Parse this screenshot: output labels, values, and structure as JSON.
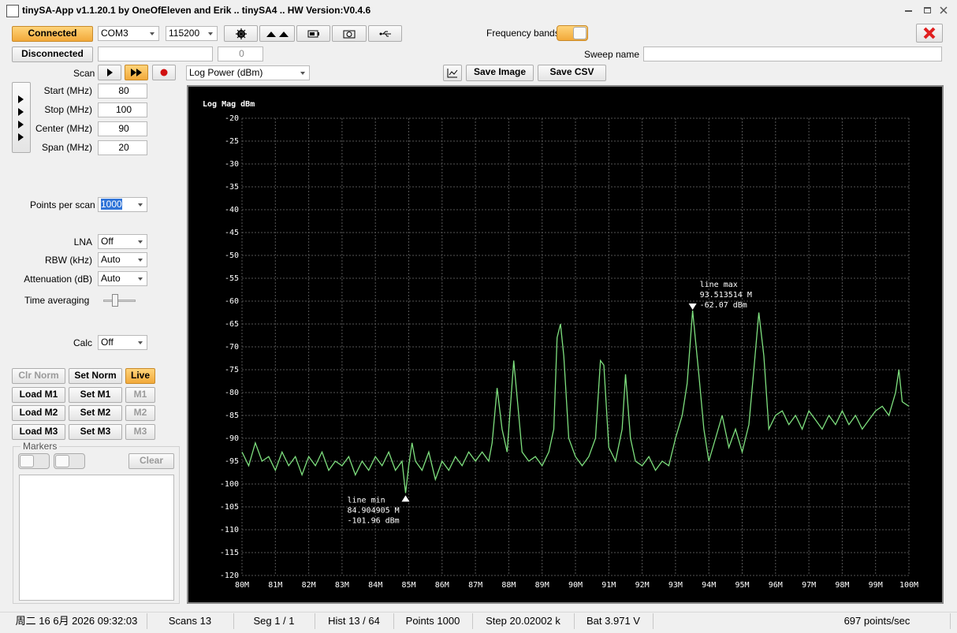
{
  "window": {
    "title": "tinySA-App v1.1.20.1 by OneOfEleven and Erik .. tinySA4 .. HW Version:V0.4.6"
  },
  "toolbar": {
    "connected": "Connected",
    "port": "COM3",
    "baud": "115200",
    "frequency_bands": "Frequency bands",
    "disconnected": "Disconnected",
    "count": "0",
    "sweep_name": "Sweep name"
  },
  "controls": {
    "scan": "Scan",
    "mode": "Log Power (dBm)",
    "save_image": "Save Image",
    "save_csv": "Save CSV"
  },
  "left_panel": {
    "fields": [
      {
        "label": "Start (MHz)",
        "value": "80"
      },
      {
        "label": "Stop (MHz)",
        "value": "100"
      },
      {
        "label": "Center (MHz)",
        "value": "90"
      },
      {
        "label": "Span (MHz)",
        "value": "20"
      }
    ],
    "points_label": "Points per scan",
    "points": "1000",
    "settings": [
      {
        "label": "LNA",
        "value": "Off"
      },
      {
        "label": "RBW (kHz)",
        "value": "Auto"
      },
      {
        "label": "Attenuation (dB)",
        "value": "Auto"
      }
    ],
    "time_averaging": "Time averaging",
    "calc_label": "Calc",
    "calc": "Off",
    "buttons": [
      [
        "Clr Norm",
        "Set Norm",
        "Live"
      ],
      [
        "Load M1",
        "Set M1",
        "M1"
      ],
      [
        "Load M2",
        "Set M2",
        "M2"
      ],
      [
        "Load M3",
        "Set M3",
        "M3"
      ]
    ],
    "markers": "Markers",
    "clear": "Clear"
  },
  "chart_data": {
    "type": "line",
    "y_label": "Log Mag dBm",
    "color": "#7ee07e",
    "grid": true,
    "xlim": [
      80,
      100
    ],
    "ylim": [
      -120,
      -20
    ],
    "xticks": [
      {
        "value": 80,
        "label": "80M"
      },
      {
        "value": 81,
        "label": "81M"
      },
      {
        "value": 82,
        "label": "82M"
      },
      {
        "value": 83,
        "label": "83M"
      },
      {
        "value": 84,
        "label": "84M"
      },
      {
        "value": 85,
        "label": "85M"
      },
      {
        "value": 86,
        "label": "86M"
      },
      {
        "value": 87,
        "label": "87M"
      },
      {
        "value": 88,
        "label": "88M"
      },
      {
        "value": 89,
        "label": "89M"
      },
      {
        "value": 90,
        "label": "90M"
      },
      {
        "value": 91,
        "label": "91M"
      },
      {
        "value": 92,
        "label": "92M"
      },
      {
        "value": 93,
        "label": "93M"
      },
      {
        "value": 94,
        "label": "94M"
      },
      {
        "value": 95,
        "label": "95M"
      },
      {
        "value": 96,
        "label": "96M"
      },
      {
        "value": 97,
        "label": "97M"
      },
      {
        "value": 98,
        "label": "98M"
      },
      {
        "value": 99,
        "label": "99M"
      },
      {
        "value": 100,
        "label": "100M"
      }
    ],
    "yticks": [
      -20,
      -25,
      -30,
      -35,
      -40,
      -45,
      -50,
      -55,
      -60,
      -65,
      -70,
      -75,
      -80,
      -85,
      -90,
      -95,
      -100,
      -105,
      -110,
      -115,
      -120
    ],
    "x": [
      80.0,
      80.2,
      80.4,
      80.6,
      80.8,
      81.0,
      81.2,
      81.4,
      81.6,
      81.8,
      82.0,
      82.2,
      82.4,
      82.6,
      82.8,
      83.0,
      83.2,
      83.4,
      83.6,
      83.8,
      84.0,
      84.2,
      84.4,
      84.6,
      84.8,
      84.904905,
      85.0,
      85.1,
      85.2,
      85.4,
      85.6,
      85.8,
      86.0,
      86.2,
      86.4,
      86.6,
      86.8,
      87.0,
      87.2,
      87.4,
      87.5,
      87.65,
      87.8,
      87.95,
      88.05,
      88.15,
      88.3,
      88.4,
      88.6,
      88.8,
      89.0,
      89.2,
      89.35,
      89.45,
      89.55,
      89.65,
      89.8,
      90.0,
      90.2,
      90.4,
      90.6,
      90.75,
      90.85,
      91.0,
      91.2,
      91.4,
      91.5,
      91.65,
      91.8,
      92.0,
      92.2,
      92.4,
      92.6,
      92.8,
      93.0,
      93.2,
      93.35,
      93.513514,
      93.7,
      93.85,
      94.0,
      94.2,
      94.4,
      94.6,
      94.8,
      95.0,
      95.2,
      95.35,
      95.5,
      95.65,
      95.8,
      96.0,
      96.2,
      96.4,
      96.6,
      96.8,
      97.0,
      97.2,
      97.4,
      97.6,
      97.8,
      98.0,
      98.2,
      98.4,
      98.6,
      98.8,
      99.0,
      99.2,
      99.4,
      99.6,
      99.7,
      99.8,
      100.0
    ],
    "values": [
      -93,
      -96,
      -91,
      -95,
      -94,
      -97,
      -93,
      -96,
      -94,
      -98,
      -94,
      -96,
      -93,
      -97,
      -95,
      -96,
      -94,
      -98,
      -95,
      -97,
      -94,
      -96,
      -93,
      -97,
      -95,
      -101.96,
      -96,
      -91,
      -95,
      -97,
      -93,
      -99,
      -95,
      -97,
      -94,
      -96,
      -93,
      -95,
      -93,
      -95,
      -91,
      -79,
      -88,
      -93,
      -83,
      -73,
      -85,
      -93,
      -95,
      -94,
      -96,
      -93,
      -88,
      -68,
      -65,
      -72,
      -90,
      -94,
      -96,
      -94,
      -90,
      -73,
      -74,
      -92,
      -95,
      -88,
      -76,
      -90,
      -95,
      -96,
      -94,
      -97,
      -95,
      -96,
      -90,
      -85,
      -78,
      -62.07,
      -76,
      -88,
      -95,
      -90,
      -85,
      -92,
      -88,
      -93,
      -87,
      -75,
      -62.5,
      -72,
      -88,
      -85,
      -84,
      -87,
      -85,
      -88,
      -84,
      -86,
      -88,
      -85,
      -87,
      -84,
      -87,
      -85,
      -88,
      -86,
      -84,
      -83,
      -85,
      -80,
      -75,
      -82,
      -83
    ],
    "annotations": [
      {
        "label": "line max",
        "x": 93.513514,
        "x_label": "93.513514 M",
        "y": -62.07,
        "y_label": "-62.07 dBm"
      },
      {
        "label": "line min",
        "x": 84.904905,
        "x_label": "84.904905 M",
        "y": -101.96,
        "y_label": "-101.96 dBm"
      }
    ]
  },
  "status_bar": [
    "周二 16 6月 2026 09:32:03",
    "Scans 13",
    "Seg 1 / 1",
    "Hist 13 / 64",
    "Points 1000",
    "Step 20.02002 k",
    "Bat 3.971 V",
    "697 points/sec"
  ]
}
